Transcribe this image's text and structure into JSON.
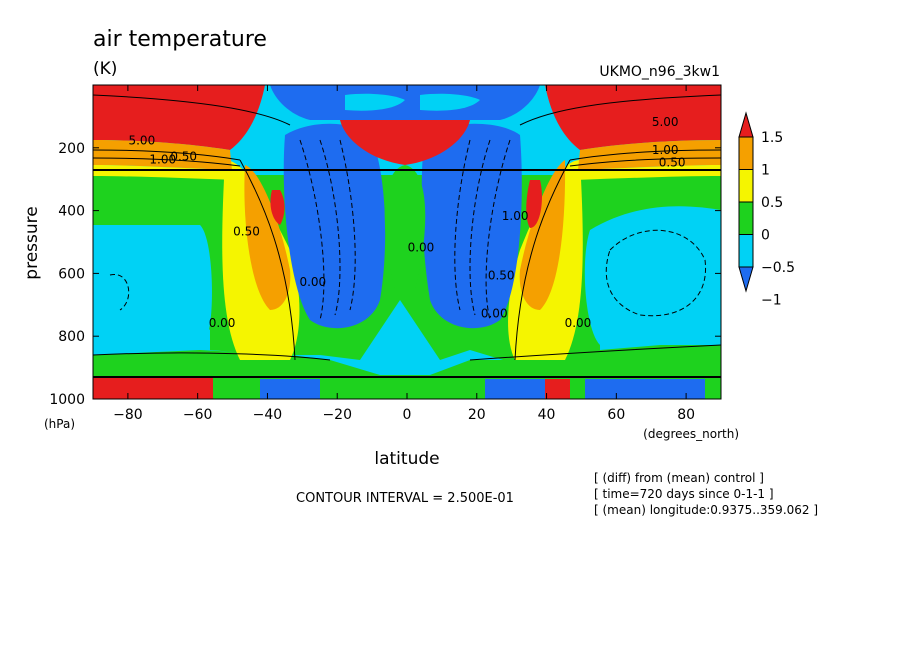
{
  "chart_data": {
    "type": "heatmap",
    "title": "air temperature",
    "units": "(K)",
    "model_label": "UKMO_n96_3kw1",
    "xlabel": "latitude",
    "xunits": "(degrees_north)",
    "ylabel": "pressure",
    "yunits": "(hPa)",
    "xlim": [
      -90,
      90
    ],
    "ylim": [
      1000,
      0
    ],
    "x_ticks": [
      -80,
      -60,
      -40,
      -20,
      0,
      20,
      40,
      60,
      80
    ],
    "x_tick_labels": [
      "−80",
      "−60",
      "−40",
      "−20",
      "0",
      "20",
      "40",
      "60",
      "80"
    ],
    "y_ticks": [
      200,
      400,
      600,
      800,
      1000
    ],
    "y_tick_labels": [
      "200",
      "400",
      "600",
      "800",
      "1000"
    ],
    "contour_interval_text": "CONTOUR INTERVAL = 2.500E-01",
    "notes": [
      "[ (diff) from (mean) control ]",
      "[ time=720 days since 0-1-1 ]",
      "[ (mean) longitude:0.9375..359.062 ]"
    ],
    "colorbar": {
      "levels": [
        -1,
        -0.5,
        0,
        0.5,
        1,
        1.5
      ],
      "labels": [
        "−1",
        "−0.5",
        "0",
        "0.5",
        "1",
        "1.5"
      ],
      "colors": [
        "#1e6cf0",
        "#00d2f5",
        "#1ed21e",
        "#f5f500",
        "#f5a000",
        "#e61e1e"
      ]
    },
    "contour_labels": [
      {
        "text": "5.00",
        "lat": -76,
        "p": 190
      },
      {
        "text": "1.00",
        "lat": -70,
        "p": 250
      },
      {
        "text": "0.50",
        "lat": -64,
        "p": 240
      },
      {
        "text": "0.50",
        "lat": -46,
        "p": 480
      },
      {
        "text": "0.00",
        "lat": -53,
        "p": 770
      },
      {
        "text": "0.00",
        "lat": -27,
        "p": 640
      },
      {
        "text": "0.00",
        "lat": 4,
        "p": 530
      },
      {
        "text": "0.00",
        "lat": 25,
        "p": 740
      },
      {
        "text": "0.50",
        "lat": 27,
        "p": 620
      },
      {
        "text": "1.00",
        "lat": 31,
        "p": 430
      },
      {
        "text": "0.00",
        "lat": 49,
        "p": 770
      },
      {
        "text": "5.00",
        "lat": 74,
        "p": 130
      },
      {
        "text": "1.00",
        "lat": 74,
        "p": 220
      },
      {
        "text": "0.50",
        "lat": 76,
        "p": 260
      }
    ]
  }
}
